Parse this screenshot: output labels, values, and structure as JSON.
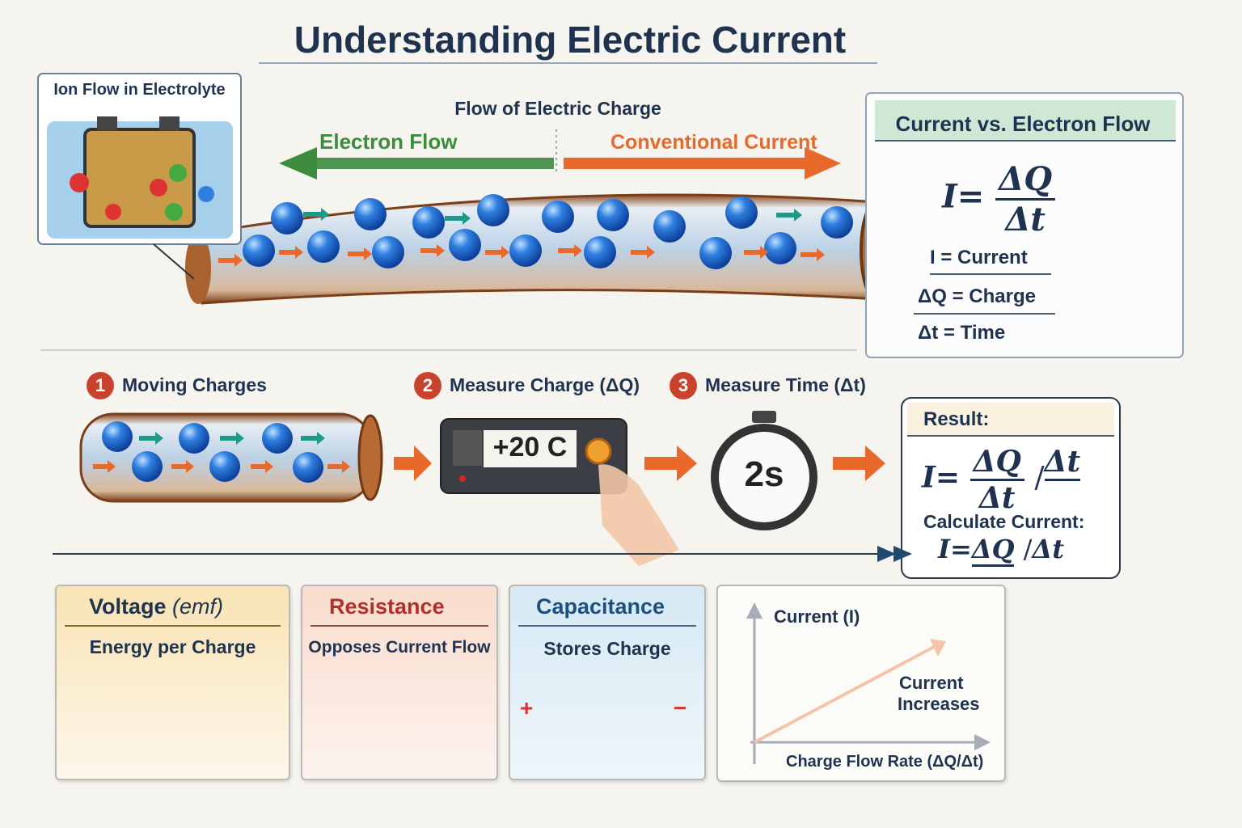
{
  "title": "Understanding Electric Current",
  "inset": {
    "label": "Ion Flow in Electrolyte"
  },
  "flow": {
    "heading": "Flow of Electric Charge",
    "electron_label": "Electron Flow",
    "conventional_label": "Conventional Current",
    "colors": {
      "electron": "#3d8b3d",
      "conventional": "#e8692a",
      "charge": "#1f6fd1",
      "copper": "#a8622f"
    }
  },
  "definition_box": {
    "title": "Current vs. Electron Flow",
    "formula": {
      "lhs": "I",
      "eq": "=",
      "num": "ΔQ",
      "den": "Δt"
    },
    "defs": [
      "I = Current",
      "ΔQ = Charge",
      "Δt = Time"
    ]
  },
  "steps": [
    {
      "num": "1",
      "label": "Moving Charges"
    },
    {
      "num": "2",
      "label": "Measure Charge (ΔQ)"
    },
    {
      "num": "3",
      "label": "Measure Time (Δt)"
    }
  ],
  "meter": {
    "display": "+20 C"
  },
  "stopwatch": {
    "display": "2s"
  },
  "result": {
    "title": "Result:",
    "formula1": {
      "lhs": "I",
      "eq": "=",
      "num": "ΔQ",
      "den": "Δt",
      "tail": "Δt"
    },
    "calc_label": "Calculate Current:",
    "formula2": {
      "lhs": "I",
      "eq": "=",
      "num": "ΔQ",
      "tail": "Δt"
    }
  },
  "cards": [
    {
      "title": "Voltage",
      "title_suffix": "(emf)",
      "subtitle": "Energy per Charge",
      "color": "#f8e3b4"
    },
    {
      "title": "Resistance",
      "subtitle": "Opposes Current Flow",
      "color": "#f9dccd"
    },
    {
      "title": "Capacitance",
      "subtitle": "Stores Charge",
      "plus": "+",
      "minus": "−",
      "color": "#d6e9f4"
    }
  ],
  "graph": {
    "ylabel": "Current (I)",
    "xlabel": "Charge Flow Rate (ΔQ/Δt)",
    "annotation_line1": "Current",
    "annotation_line2": "Increases",
    "trend": "increasing linear"
  }
}
